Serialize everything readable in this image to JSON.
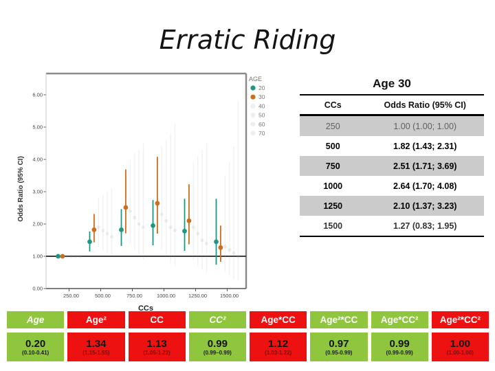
{
  "slide": {
    "title": "Erratic Riding"
  },
  "chart_data": {
    "type": "scatter",
    "title": "",
    "xlabel": "CCs",
    "ylabel": "Odds Ratio (95% CI)",
    "legend_title": "AGE",
    "legend_position": "right-outside",
    "grid": false,
    "categories": [
      250,
      500,
      750,
      1000,
      1250,
      1500
    ],
    "x_ticks": [
      "250.00",
      "500.00",
      "750.00",
      "1000.00",
      "1250.00",
      "1500.00"
    ],
    "y_ticks": [
      "0.00",
      "1.00",
      "2.00",
      "3.00",
      "4.00",
      "5.00",
      "6.00"
    ],
    "ylim": [
      0,
      6.65
    ],
    "reference_line_y": 1.0,
    "series": [
      {
        "name": "20",
        "color": "#1f9684",
        "faint": false,
        "points": [
          {
            "x": 250,
            "or": 1.0,
            "lo": 1.0,
            "hi": 1.0
          },
          {
            "x": 500,
            "or": 1.45,
            "lo": 1.15,
            "hi": 1.77
          },
          {
            "x": 750,
            "or": 1.82,
            "lo": 1.32,
            "hi": 2.46
          },
          {
            "x": 1000,
            "or": 1.95,
            "lo": 1.34,
            "hi": 2.74
          },
          {
            "x": 1250,
            "or": 1.78,
            "lo": 1.17,
            "hi": 2.78
          },
          {
            "x": 1500,
            "or": 1.45,
            "lo": 0.74,
            "hi": 2.78
          }
        ]
      },
      {
        "name": "30",
        "color": "#c8701f",
        "faint": false,
        "points": [
          {
            "x": 250,
            "or": 1.0,
            "lo": 1.0,
            "hi": 1.0
          },
          {
            "x": 500,
            "or": 1.82,
            "lo": 1.43,
            "hi": 2.31
          },
          {
            "x": 750,
            "or": 2.51,
            "lo": 1.71,
            "hi": 3.69
          },
          {
            "x": 1000,
            "or": 2.64,
            "lo": 1.7,
            "hi": 4.08
          },
          {
            "x": 1250,
            "or": 2.1,
            "lo": 1.37,
            "hi": 3.23
          },
          {
            "x": 1500,
            "or": 1.27,
            "lo": 0.83,
            "hi": 1.95
          }
        ]
      },
      {
        "name": "40",
        "color": "#9a9a9a",
        "faint": true,
        "points": [
          {
            "x": 250,
            "or": 1.0,
            "lo": 1.0,
            "hi": 1.0
          },
          {
            "x": 500,
            "or": 1.9,
            "lo": 1.3,
            "hi": 2.8
          },
          {
            "x": 750,
            "or": 2.4,
            "lo": 1.4,
            "hi": 4.0
          },
          {
            "x": 1000,
            "or": 2.3,
            "lo": 1.2,
            "hi": 4.4
          },
          {
            "x": 1250,
            "or": 1.9,
            "lo": 0.9,
            "hi": 3.9
          },
          {
            "x": 1500,
            "or": 1.3,
            "lo": 0.5,
            "hi": 3.5
          }
        ]
      },
      {
        "name": "50",
        "color": "#9a9a9a",
        "faint": true,
        "points": [
          {
            "x": 250,
            "or": 1.0,
            "lo": 1.0,
            "hi": 1.0
          },
          {
            "x": 500,
            "or": 1.8,
            "lo": 1.2,
            "hi": 2.9
          },
          {
            "x": 750,
            "or": 2.2,
            "lo": 1.2,
            "hi": 4.2
          },
          {
            "x": 1000,
            "or": 2.1,
            "lo": 1.0,
            "hi": 4.6
          },
          {
            "x": 1250,
            "or": 1.7,
            "lo": 0.7,
            "hi": 4.1
          },
          {
            "x": 1500,
            "or": 1.2,
            "lo": 0.4,
            "hi": 3.9
          }
        ]
      },
      {
        "name": "60",
        "color": "#9a9a9a",
        "faint": true,
        "points": [
          {
            "x": 250,
            "or": 1.0,
            "lo": 1.0,
            "hi": 1.0
          },
          {
            "x": 500,
            "or": 1.7,
            "lo": 1.1,
            "hi": 3.0
          },
          {
            "x": 750,
            "or": 2.0,
            "lo": 1.0,
            "hi": 4.3
          },
          {
            "x": 1000,
            "or": 1.9,
            "lo": 0.8,
            "hi": 4.8
          },
          {
            "x": 1250,
            "or": 1.5,
            "lo": 0.6,
            "hi": 4.3
          },
          {
            "x": 1500,
            "or": 1.1,
            "lo": 0.3,
            "hi": 4.4
          }
        ]
      },
      {
        "name": "70",
        "color": "#9a9a9a",
        "faint": true,
        "points": [
          {
            "x": 250,
            "or": 1.0,
            "lo": 1.0,
            "hi": 1.0
          },
          {
            "x": 500,
            "or": 1.6,
            "lo": 1.0,
            "hi": 3.1
          },
          {
            "x": 750,
            "or": 1.9,
            "lo": 0.9,
            "hi": 4.5
          },
          {
            "x": 1000,
            "or": 1.8,
            "lo": 0.7,
            "hi": 5.1
          },
          {
            "x": 1250,
            "or": 1.4,
            "lo": 0.5,
            "hi": 4.5
          },
          {
            "x": 1500,
            "or": 1.0,
            "lo": 0.25,
            "hi": 5.8
          }
        ]
      }
    ]
  },
  "age30_table": {
    "title": "Age 30",
    "columns": [
      "CCs",
      "Odds Ratio (95% CI)"
    ],
    "rows": [
      {
        "cc": "250",
        "or": "1.00 (1.00; 1.00)"
      },
      {
        "cc": "500",
        "or": "1.82 (1.43; 2.31)"
      },
      {
        "cc": "750",
        "or": "2.51 (1.71; 3.69)"
      },
      {
        "cc": "1000",
        "or": "2.64 (1.70; 4.08)"
      },
      {
        "cc": "1250",
        "or": "2.10 (1.37; 3.23)"
      },
      {
        "cc": "1500",
        "or": "1.27 (0.83; 1.95)"
      }
    ]
  },
  "coefficients_table": {
    "colors": {
      "green": "#8fc63e",
      "red": "#ee1111"
    },
    "cells": [
      {
        "label": "Age",
        "value": "0.20",
        "ci": "(0.10-0.41)",
        "color": "green",
        "italic": "true"
      },
      {
        "label": "Age²",
        "value": "1.34",
        "ci": "(1.15-1.55)",
        "color": "red",
        "italic": "false"
      },
      {
        "label": "CC",
        "value": "1.13",
        "ci": "(1.05-1.22)",
        "color": "red",
        "italic": "false"
      },
      {
        "label": "CC²",
        "value": "0.99",
        "ci": "(0.99–0.99)",
        "color": "green",
        "italic": "true"
      },
      {
        "label": "Age*CC",
        "value": "1.12",
        "ci": "(1.03-1.22)",
        "color": "red",
        "italic": "false"
      },
      {
        "label": "Age²*CC",
        "value": "0.97",
        "ci": "(0.95-0.99)",
        "color": "green",
        "italic": "false"
      },
      {
        "label": "Age*CC²",
        "value": "0.99",
        "ci": "(0.99-0.99)",
        "color": "green",
        "italic": "false"
      },
      {
        "label": "Age²*CC²",
        "value": "1.00",
        "ci": "(1.00-1.00)",
        "color": "red",
        "italic": "false"
      }
    ]
  }
}
